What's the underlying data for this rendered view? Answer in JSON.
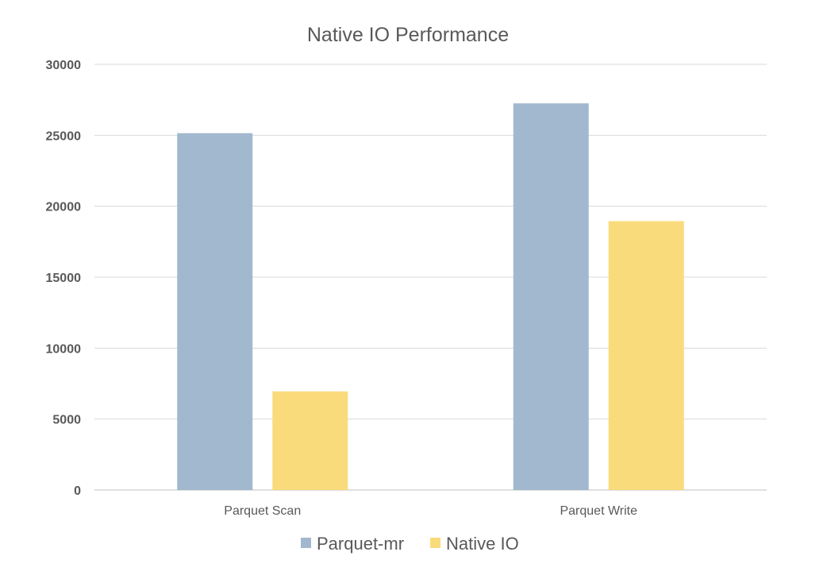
{
  "chart_data": {
    "type": "bar",
    "title": "Native IO Performance",
    "categories": [
      "Parquet Scan",
      "Parquet Write"
    ],
    "series": [
      {
        "name": "Parquet-mr",
        "values": [
          25150,
          27250
        ],
        "color": "#A2B8CE"
      },
      {
        "name": "Native IO",
        "values": [
          6950,
          18950
        ],
        "color": "#FADB7C"
      }
    ],
    "ylim": [
      0,
      30000
    ],
    "yticks": [
      "0",
      "5000",
      "10000",
      "15000",
      "20000",
      "25000",
      "30000"
    ],
    "grid": true,
    "legend": "bottom"
  }
}
